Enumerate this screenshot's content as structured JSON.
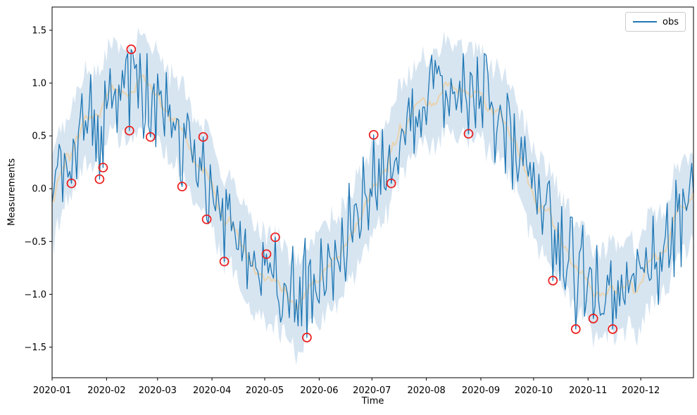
{
  "chart_data": {
    "type": "line",
    "xlabel": "Time",
    "ylabel": "Measurements",
    "grid": false,
    "legend": {
      "position": "upper right",
      "entries": [
        {
          "label": "obs",
          "color": "#1f77b4",
          "style": "line"
        }
      ]
    },
    "x_axis": {
      "start_date": "2020-01-01",
      "end_date": "2020-12-31",
      "tick_labels": [
        "2020-01",
        "2020-02",
        "2020-03",
        "2020-04",
        "2020-05",
        "2020-06",
        "2020-07",
        "2020-08",
        "2020-09",
        "2020-10",
        "2020-11",
        "2020-12"
      ],
      "tick_day_offsets": [
        0,
        31,
        60,
        91,
        121,
        152,
        182,
        213,
        244,
        274,
        305,
        335
      ],
      "xlim_day_offsets": [
        0,
        365
      ]
    },
    "y_axis": {
      "tick_values": [
        -1.5,
        -1.0,
        -0.5,
        0.0,
        0.5,
        1.0,
        1.5
      ],
      "tick_labels": [
        "−1.5",
        "−1.0",
        "−0.5",
        "0.0",
        "0.5",
        "1.0",
        "1.5"
      ],
      "ylim": [
        -1.79,
        1.72
      ]
    },
    "series_model": {
      "description": "Daily 2020 measurements: obs = sine wave plus noise; smooth trend line; shaded confidence band around trend",
      "n_days": 366,
      "amplitude": 1.0,
      "period_days": 182.5,
      "phase_days": 0,
      "noise_std": 0.22,
      "trend_wiggle_scale": 0.17,
      "trend_smooth_window": 7,
      "band": {
        "base_half_width": 0.31,
        "jitter": 0.22
      },
      "seed": 20
    },
    "colors": {
      "obs_line": "#1f77b4",
      "trend_line": "#e7d4b5",
      "band_fill": "#d7e5f1",
      "anomaly_marker": "#ec1c1c",
      "axis": "#000000"
    },
    "anomalies": {
      "marker": "open-circle",
      "points": [
        {
          "date": "2020-01-12",
          "day_offset": 11,
          "value": 0.05
        },
        {
          "date": "2020-01-28",
          "day_offset": 27,
          "value": 0.09
        },
        {
          "date": "2020-01-30",
          "day_offset": 29,
          "value": 0.2
        },
        {
          "date": "2020-02-14",
          "day_offset": 44,
          "value": 0.55
        },
        {
          "date": "2020-02-15",
          "day_offset": 45,
          "value": 1.32
        },
        {
          "date": "2020-02-26",
          "day_offset": 56,
          "value": 0.49
        },
        {
          "date": "2020-03-15",
          "day_offset": 74,
          "value": 0.02
        },
        {
          "date": "2020-03-27",
          "day_offset": 86,
          "value": 0.49
        },
        {
          "date": "2020-03-29",
          "day_offset": 88,
          "value": -0.29
        },
        {
          "date": "2020-04-08",
          "day_offset": 98,
          "value": -0.69
        },
        {
          "date": "2020-05-02",
          "day_offset": 122,
          "value": -0.62
        },
        {
          "date": "2020-05-07",
          "day_offset": 127,
          "value": -0.46
        },
        {
          "date": "2020-05-25",
          "day_offset": 145,
          "value": -1.41
        },
        {
          "date": "2020-07-02",
          "day_offset": 183,
          "value": 0.51
        },
        {
          "date": "2020-07-12",
          "day_offset": 193,
          "value": 0.05
        },
        {
          "date": "2020-08-25",
          "day_offset": 237,
          "value": 0.52
        },
        {
          "date": "2020-10-12",
          "day_offset": 285,
          "value": -0.87
        },
        {
          "date": "2020-10-25",
          "day_offset": 298,
          "value": -1.33
        },
        {
          "date": "2020-11-04",
          "day_offset": 308,
          "value": -1.23
        },
        {
          "date": "2020-11-15",
          "day_offset": 319,
          "value": -1.33
        }
      ]
    }
  }
}
